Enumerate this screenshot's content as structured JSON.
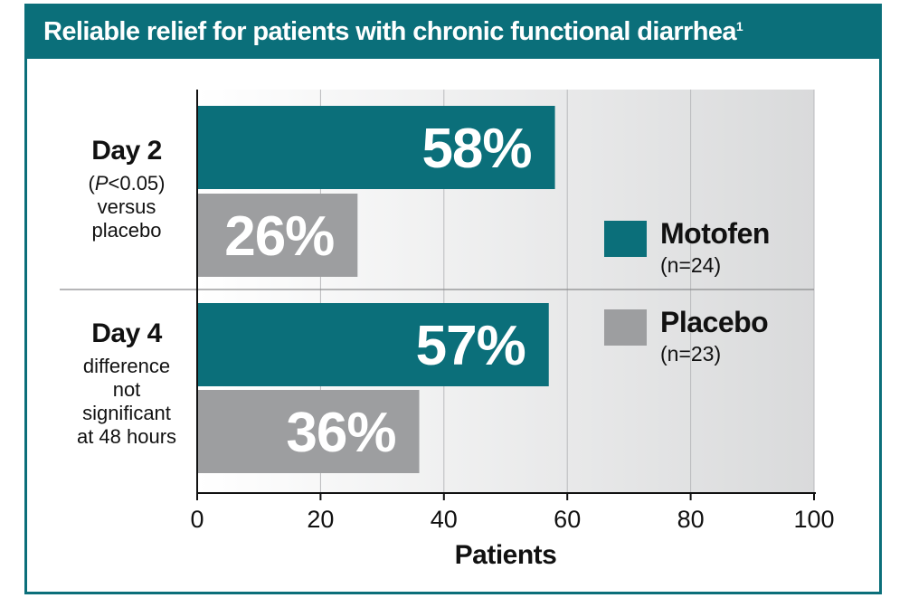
{
  "header": {
    "title": "Reliable relief for patients with chronic functional diarrhea",
    "footnote_ref": "1"
  },
  "colors": {
    "brand_teal": "#0b6f7a",
    "placebo_gray": "#9d9ea0",
    "bar_label": "#ffffff"
  },
  "chart_data": {
    "type": "bar",
    "orientation": "horizontal",
    "title": "Reliable relief for patients with chronic functional diarrhea",
    "categories": [
      "Day 2",
      "Day 4"
    ],
    "category_notes": [
      {
        "italic": "P",
        "text": "<0.05)",
        "open": "(",
        "line2": "versus",
        "line3": "placebo"
      },
      {
        "line1": "difference",
        "line2": "not",
        "line3": "significant",
        "line4": "at 48 hours"
      }
    ],
    "series": [
      {
        "name": "Motofen",
        "n_label": "(n=24)",
        "values": [
          58,
          57
        ],
        "labels": [
          "58%",
          "57%"
        ],
        "color": "#0b6f7a"
      },
      {
        "name": "Placebo",
        "n_label": "(n=23)",
        "values": [
          26,
          36
        ],
        "labels": [
          "26%",
          "36%"
        ],
        "color": "#9d9ea0"
      }
    ],
    "xlabel": "Patients",
    "ylabel": "",
    "xlim": [
      0,
      100
    ],
    "xticks": [
      0,
      20,
      40,
      60,
      80,
      100
    ],
    "xtick_labels": [
      "0",
      "20",
      "40",
      "60",
      "80",
      "100"
    ],
    "grid": true,
    "legend_position": "right"
  }
}
